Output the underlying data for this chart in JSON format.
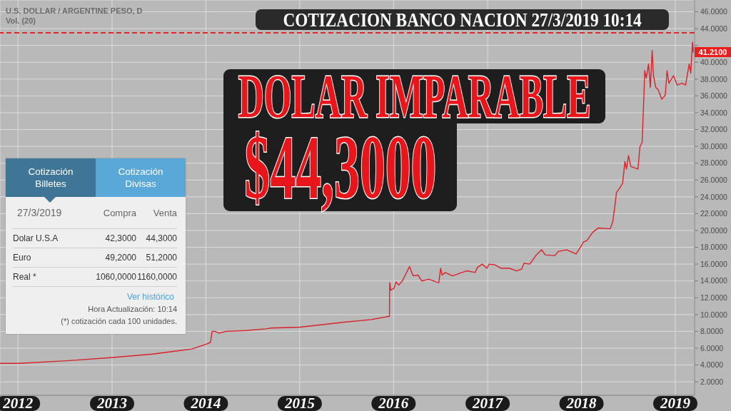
{
  "chart_data": [
    {
      "type": "line",
      "title": "DOLAR IMPARABLE",
      "subtitle": "$44,3000",
      "annotations": [
        "U.S. DOLLAR / ARGENTINE PESO, D",
        "Vol. (20)",
        "COTIZACION BANCO NACION 27/3/2019 10:14",
        "41.2100"
      ],
      "x": [
        "2011-10-23",
        "2012-01-03",
        "2012-07-08",
        "2013-01-04",
        "2013-06-07",
        "2013-11-07",
        "2014-01-04",
        "2014-01-19",
        "2014-01-25",
        "2014-02-06",
        "2014-02-21",
        "2014-03-21",
        "2014-06-06",
        "2014-08-22",
        "2014-09-10",
        "2015-01-02",
        "2015-06-23",
        "2015-10-06",
        "2015-12-16",
        "2015-12-17",
        "2015-12-21",
        "2016-01-02",
        "2016-01-11",
        "2016-01-21",
        "2016-02-04",
        "2016-03-03",
        "2016-03-17",
        "2016-04-05",
        "2016-04-19",
        "2016-05-17",
        "2016-06-14",
        "2016-06-25",
        "2016-07-02",
        "2016-07-08",
        "2016-07-20",
        "2016-08-17",
        "2016-09-23",
        "2016-10-12",
        "2016-11-13",
        "2016-11-22",
        "2016-12-11",
        "2016-12-29",
        "2017-01-07",
        "2017-01-30",
        "2017-02-23",
        "2017-03-27",
        "2017-04-24",
        "2017-05-13",
        "2017-05-22",
        "2017-06-14",
        "2017-07-07",
        "2017-07-30",
        "2017-08-13",
        "2017-09-19",
        "2017-10-03",
        "2017-11-04",
        "2017-12-11",
        "2017-12-30",
        "2018-01-08",
        "2018-01-22",
        "2018-02-14",
        "2018-03-08",
        "2018-04-23",
        "2018-05-03",
        "2018-05-13",
        "2018-05-17",
        "2018-05-31",
        "2018-06-10",
        "2018-06-19",
        "2018-06-25",
        "2018-07-03",
        "2018-07-12",
        "2018-08-09",
        "2018-08-16",
        "2018-08-25",
        "2018-09-01",
        "2018-09-04",
        "2018-09-10",
        "2018-09-19",
        "2018-09-26",
        "2018-10-03",
        "2018-10-08",
        "2018-10-17",
        "2018-10-27",
        "2018-11-09",
        "2018-11-23",
        "2018-11-30",
        "2018-12-07",
        "2018-12-25",
        "2019-01-08",
        "2019-01-27",
        "2019-02-10",
        "2019-02-24",
        "2019-03-02",
        "2019-03-09",
        "2019-03-12"
      ],
      "values": [
        4.2,
        4.2,
        4.5,
        4.9,
        5.3,
        5.9,
        6.5,
        6.7,
        8.0,
        8.0,
        7.8,
        8.0,
        8.1,
        8.3,
        8.4,
        8.5,
        9.1,
        9.4,
        9.8,
        13.8,
        12.9,
        13.1,
        13.9,
        13.5,
        14.0,
        15.7,
        14.6,
        14.7,
        14.0,
        14.2,
        13.9,
        13.8,
        15.5,
        14.7,
        15.0,
        14.6,
        15.0,
        15.2,
        15.0,
        15.6,
        16.0,
        15.5,
        16.0,
        15.9,
        15.5,
        15.5,
        15.2,
        15.4,
        16.1,
        16.0,
        17.0,
        17.7,
        17.1,
        17.0,
        17.5,
        17.7,
        17.2,
        18.1,
        18.6,
        18.8,
        19.8,
        20.3,
        20.2,
        21.1,
        23.4,
        24.5,
        25.1,
        25.6,
        28.2,
        27.3,
        28.9,
        27.6,
        27.3,
        29.9,
        30.5,
        36.1,
        39.0,
        38.1,
        39.8,
        37.0,
        41.4,
        38.4,
        37.0,
        36.7,
        35.6,
        36.1,
        39.0,
        37.5,
        38.4,
        37.3,
        37.5,
        37.3,
        39.8,
        38.7,
        42.4,
        41.2
      ],
      "color": "#d8232a",
      "marker": "none",
      "line_style": "solid",
      "xlim": [
        "2011-10-23",
        "2019-03-17"
      ],
      "xticks": [
        "2012",
        "2013",
        "2014",
        "2015",
        "2016",
        "2017",
        "2018",
        "2019"
      ],
      "ylim": [
        0.4,
        47.4
      ],
      "yticks": [
        {
          "value": 2,
          "label": "2.0000"
        },
        {
          "value": 4,
          "label": "4.0000"
        },
        {
          "value": 6,
          "label": "6.0000"
        },
        {
          "value": 8,
          "label": "8.0000"
        },
        {
          "value": 10,
          "label": "10.0000"
        },
        {
          "value": 12,
          "label": "12.0000"
        },
        {
          "value": 14,
          "label": "14.0000"
        },
        {
          "value": 16,
          "label": "16.0000"
        },
        {
          "value": 18,
          "label": "18.0000"
        },
        {
          "value": 20,
          "label": "20.0000"
        },
        {
          "value": 22,
          "label": "22.0000"
        },
        {
          "value": 24,
          "label": "24.0000"
        },
        {
          "value": 26,
          "label": "26.0000"
        },
        {
          "value": 28,
          "label": "28.0000"
        },
        {
          "value": 30,
          "label": "30.0000"
        },
        {
          "value": 32,
          "label": "32.0000"
        },
        {
          "value": 34,
          "label": "34.0000"
        },
        {
          "value": 36,
          "label": "36.0000"
        },
        {
          "value": 38,
          "label": "38.0000"
        },
        {
          "value": 40,
          "label": "40.0000"
        },
        {
          "value": 42,
          "label": null
        },
        {
          "value": 44,
          "label": "44.0000"
        },
        {
          "value": 46,
          "label": "46.0000"
        }
      ],
      "grid": true,
      "ref_lines": [
        {
          "axis": "y",
          "value": 43.5,
          "color": "#e3262b",
          "line_style": "dashed"
        }
      ]
    },
    {
      "type": "other",
      "annotations": [
        "Cotización Billetes",
        "Cotización Divisas",
        "27/3/2019",
        "Compra",
        "Venta",
        "Dolar U.S.A",
        "42,3000",
        "44,3000",
        "Euro",
        "49,2000",
        "51,2000",
        "Real *",
        "1060,0000",
        "1160,0000",
        "Ver histórico",
        "Hora Actualización: 10:14",
        "(*) cotización cada 100 unidades."
      ]
    }
  ]
}
